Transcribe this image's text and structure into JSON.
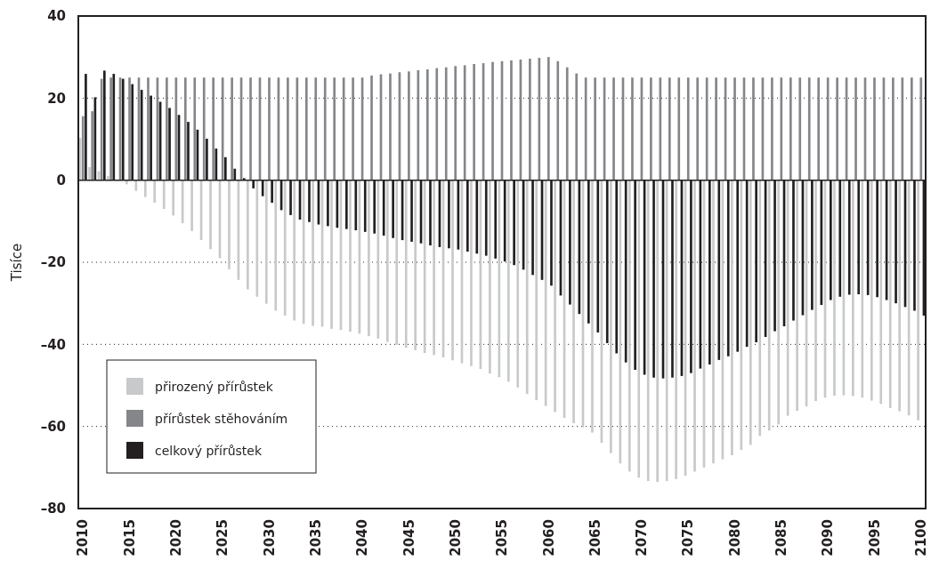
{
  "chart_data": {
    "type": "bar",
    "ylabel": "Tisíce",
    "x": [
      2010,
      2011,
      2012,
      2013,
      2014,
      2015,
      2016,
      2017,
      2018,
      2019,
      2020,
      2021,
      2022,
      2023,
      2024,
      2025,
      2026,
      2027,
      2028,
      2029,
      2030,
      2031,
      2032,
      2033,
      2034,
      2035,
      2036,
      2037,
      2038,
      2039,
      2040,
      2041,
      2042,
      2043,
      2044,
      2045,
      2046,
      2047,
      2048,
      2049,
      2050,
      2051,
      2052,
      2053,
      2054,
      2055,
      2056,
      2057,
      2058,
      2059,
      2060,
      2061,
      2062,
      2063,
      2064,
      2065,
      2066,
      2067,
      2068,
      2069,
      2070,
      2071,
      2072,
      2073,
      2074,
      2075,
      2076,
      2077,
      2078,
      2079,
      2080,
      2081,
      2082,
      2083,
      2084,
      2085,
      2086,
      2087,
      2088,
      2089,
      2090,
      2091,
      2092,
      2093,
      2094,
      2095,
      2096,
      2097,
      2098,
      2099,
      2100
    ],
    "series": [
      {
        "name": "přirozený přírůstek",
        "color": "#c8c9cb",
        "values": [
          10.3,
          3.2,
          2.2,
          1.0,
          null,
          -1,
          -2.6,
          -4.1,
          -5.5,
          -7,
          -8.6,
          -10.5,
          -12.4,
          -14.6,
          -16.8,
          -19,
          -21.7,
          -24.3,
          -26.6,
          -28.4,
          -30.1,
          -31.8,
          -33,
          -34.2,
          -35,
          -35.5,
          -35.7,
          -36.2,
          -36.5,
          -36.9,
          -37.4,
          -38,
          -38.6,
          -39.4,
          -40.1,
          -40.8,
          -41.4,
          -42.1,
          -42.6,
          -43.2,
          -43.9,
          -44.6,
          -45.3,
          -46,
          -47.1,
          -48,
          -49.1,
          -50.5,
          -52.1,
          -53.6,
          -55,
          -56.5,
          -57.9,
          -59.2,
          -60.2,
          -61.5,
          -64,
          -66.5,
          -69,
          -71,
          -72.5,
          -73.3,
          -73.5,
          -73.3,
          -72.8,
          -72,
          -71,
          -70,
          -69,
          -68,
          -67,
          -65.7,
          -64.5,
          -62.3,
          -61,
          -59.5,
          -57.4,
          -56.2,
          -55.1,
          -53.8,
          -53,
          -52.5,
          -52.4,
          -52.6,
          -53,
          -53.7,
          -54.5,
          -55.5,
          -56.3,
          -57.3,
          -58.5
        ]
      },
      {
        "name": "přírůstek stěhováním",
        "color": "#85868a",
        "values": [
          15.6,
          16.8,
          24.7,
          25,
          25,
          25,
          25,
          25,
          25,
          25,
          25,
          25,
          25,
          25,
          25,
          25,
          25,
          25,
          25,
          25,
          25,
          25,
          25,
          25,
          25,
          25,
          25,
          25,
          25,
          25,
          25,
          25.5,
          25.8,
          26,
          26.3,
          26.5,
          26.8,
          27,
          27.3,
          27.5,
          27.8,
          28,
          28.3,
          28.5,
          28.8,
          29,
          29.2,
          29.4,
          29.6,
          29.8,
          30,
          29,
          27.5,
          26,
          25,
          25,
          25,
          25,
          25,
          25,
          25,
          25,
          25,
          25,
          25,
          25,
          25,
          25,
          25,
          25,
          25,
          25,
          25,
          25,
          25,
          25,
          25,
          25,
          25,
          25,
          25,
          25,
          25,
          25,
          25,
          25,
          25,
          25,
          25,
          25,
          25
        ]
      },
      {
        "name": "celkový přírůstek",
        "color": "#231f20",
        "values": [
          25.9,
          20.2,
          26.7,
          25.9,
          24.7,
          23.4,
          22,
          20.6,
          19.1,
          17.6,
          15.9,
          14.2,
          12.3,
          10.1,
          7.7,
          5.6,
          2.8,
          0.5,
          -2,
          -3.9,
          -5.5,
          -7.3,
          -8.5,
          -9.6,
          -10.2,
          -10.8,
          -11.2,
          -11.6,
          -11.9,
          -12.2,
          -12.6,
          -13,
          -13.5,
          -14.1,
          -14.6,
          -15,
          -15.4,
          -15.9,
          -16.3,
          -16.6,
          -16.9,
          -17.4,
          -17.9,
          -18.4,
          -19.1,
          -19.8,
          -20.7,
          -21.8,
          -23.1,
          -24.3,
          -25.7,
          -28.1,
          -30.3,
          -32.6,
          -34.9,
          -37.1,
          -39.7,
          -42.2,
          -44.4,
          -46.2,
          -47.4,
          -48.1,
          -48.3,
          -48.1,
          -47.7,
          -47,
          -45.9,
          -44.9,
          -43.8,
          -42.9,
          -41.8,
          -40.6,
          -39.5,
          -38.2,
          -36.8,
          -35.6,
          -34.2,
          -32.9,
          -31.6,
          -30.4,
          -29.2,
          -28.4,
          -27.9,
          -27.8,
          -28,
          -28.5,
          -29.2,
          -30,
          -30.9,
          -31.8,
          -33
        ]
      }
    ],
    "xlim": [
      2009.5,
      2100.5
    ],
    "xticks": [
      2010,
      2015,
      2020,
      2025,
      2030,
      2035,
      2040,
      2045,
      2050,
      2055,
      2060,
      2065,
      2070,
      2075,
      2080,
      2085,
      2090,
      2095,
      2100
    ],
    "ylim": [
      -80,
      40
    ],
    "yticks": [
      {
        "value": -80,
        "label": "–80"
      },
      {
        "value": -60,
        "label": "–60"
      },
      {
        "value": -40,
        "label": "–40"
      },
      {
        "value": -20,
        "label": "–20"
      },
      0,
      20,
      40
    ],
    "grid": "y",
    "legend": "bottom left"
  }
}
